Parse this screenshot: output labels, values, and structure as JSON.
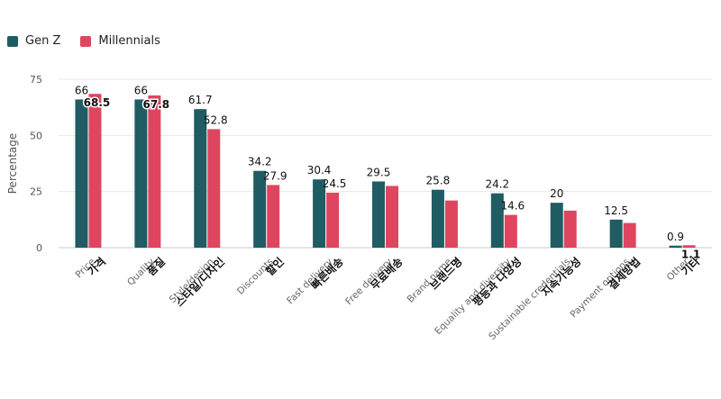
{
  "chart_data": {
    "type": "bar",
    "ylabel": "Percentage",
    "ylim": [
      0,
      75
    ],
    "yticks": [
      0,
      25,
      50,
      75
    ],
    "grid": true,
    "legend_position": "top-left",
    "categories": [
      {
        "en": "Price",
        "ko": "가격"
      },
      {
        "en": "Quality",
        "ko": "품질"
      },
      {
        "en": "Style/design",
        "ko": "스타일/디자인"
      },
      {
        "en": "Discounts",
        "ko": "할인"
      },
      {
        "en": "Fast delivery",
        "ko": "빠른배송"
      },
      {
        "en": "Free delivery",
        "ko": "무료배송"
      },
      {
        "en": "Brand name",
        "ko": "브랜드명"
      },
      {
        "en": "Equality and diversity",
        "ko": "평등과 다양성"
      },
      {
        "en": "Sustainable credentials",
        "ko": "지속가능성"
      },
      {
        "en": "Payment options",
        "ko": "결제방법"
      },
      {
        "en": "Other",
        "ko": "기타"
      }
    ],
    "series": [
      {
        "name": "Gen Z",
        "color": "#1f5c63",
        "values": [
          66,
          66,
          61.7,
          34.2,
          30.4,
          29.5,
          25.8,
          24.2,
          20,
          12.5,
          0.9
        ],
        "labels": [
          "66",
          "66",
          "61.7",
          "34.2",
          "30.4",
          "29.5",
          "25.8",
          "24.2",
          "20",
          "12.5",
          "0.9"
        ]
      },
      {
        "name": "Millennials",
        "color": "#e0455f",
        "values": [
          68.5,
          67.8,
          52.8,
          27.9,
          24.5,
          27.5,
          21,
          14.6,
          16.5,
          11,
          1.1
        ],
        "labels": [
          "68.5",
          "67.8",
          "52.8",
          "27.9",
          "24.5",
          "",
          "",
          "14.6",
          "",
          "",
          "1.1"
        ]
      }
    ]
  }
}
